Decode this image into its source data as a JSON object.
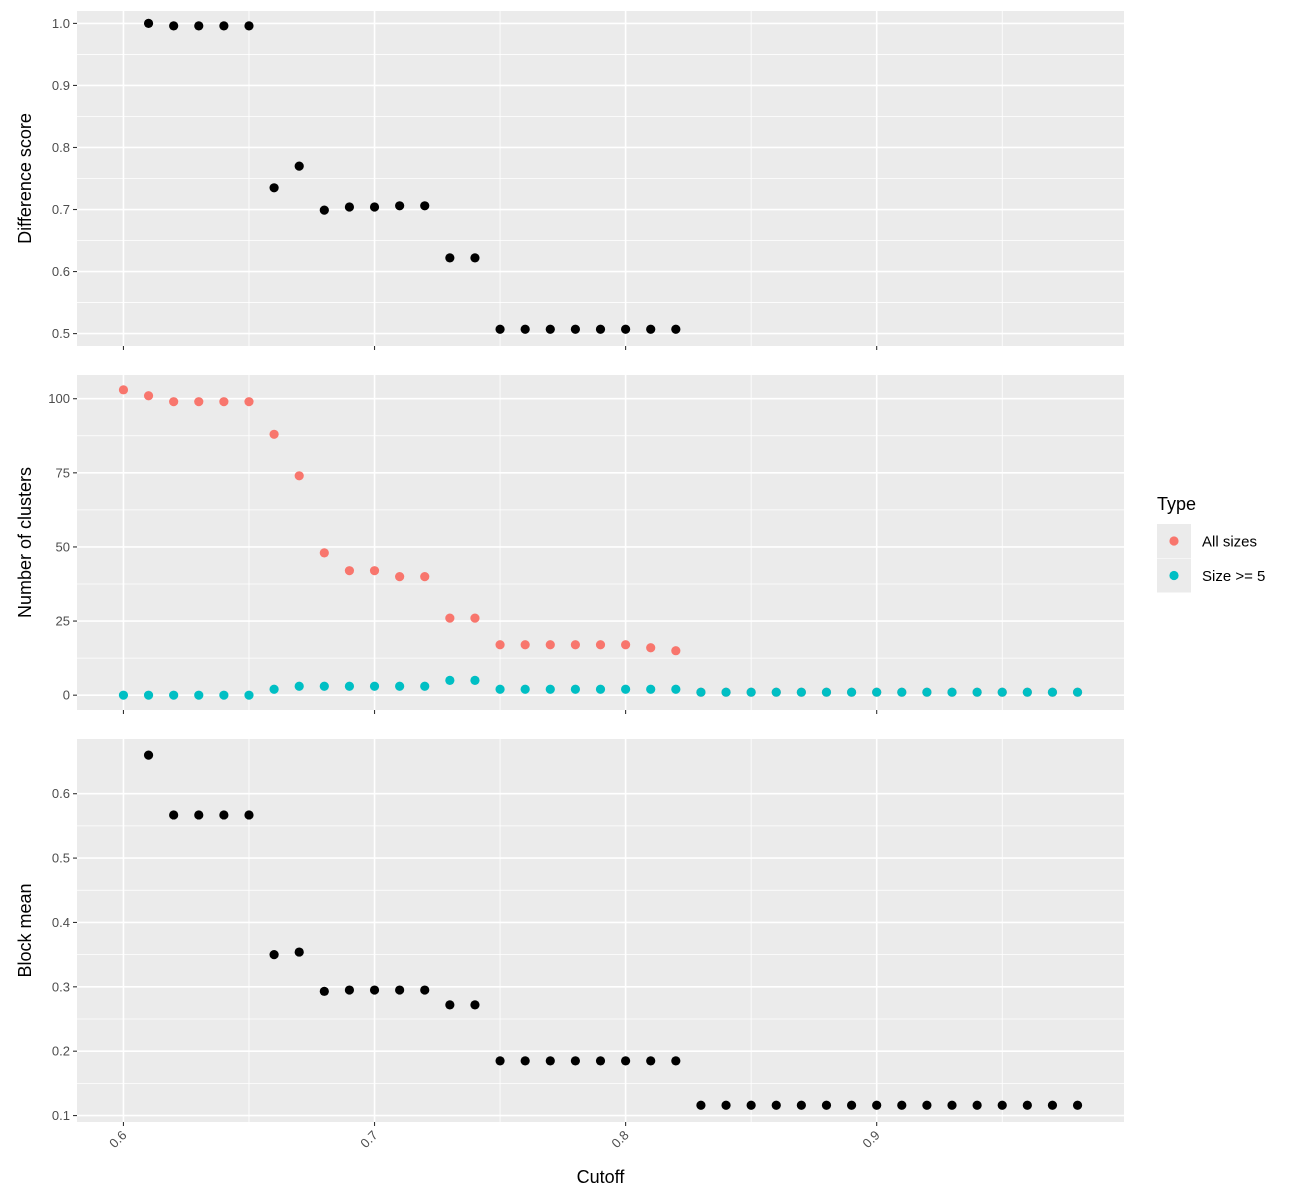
{
  "chart_data": {
    "type": "scatter",
    "layout": "faceted-vertical",
    "xlabel": "Cutoff",
    "x_ticks": [
      0.6,
      0.7,
      0.8,
      0.9
    ],
    "x_tick_labels": [
      "0.6",
      "0.7",
      "0.8",
      "0.9"
    ],
    "xlim": [
      0.5815,
      0.9985
    ],
    "grid": true,
    "legend": {
      "title": "Type",
      "placement": "right",
      "entries": [
        {
          "label": "All sizes",
          "color": "#F8766D"
        },
        {
          "label": "Size >= 5",
          "color": "#00BFC4"
        }
      ]
    },
    "panels": [
      {
        "ylabel": "Difference score",
        "ylim": [
          0.48,
          1.02
        ],
        "y_ticks": [
          0.5,
          0.6,
          0.7,
          0.8,
          0.9,
          1.0
        ],
        "y_tick_labels": [
          "0.5",
          "0.6",
          "0.7",
          "0.8",
          "0.9",
          "1.0"
        ],
        "series": [
          {
            "color": "#000000",
            "points": [
              [
                0.61,
                1.0
              ],
              [
                0.62,
                0.996
              ],
              [
                0.63,
                0.996
              ],
              [
                0.64,
                0.996
              ],
              [
                0.65,
                0.996
              ],
              [
                0.66,
                0.735
              ],
              [
                0.67,
                0.77
              ],
              [
                0.68,
                0.699
              ],
              [
                0.69,
                0.704
              ],
              [
                0.7,
                0.704
              ],
              [
                0.71,
                0.706
              ],
              [
                0.72,
                0.706
              ],
              [
                0.73,
                0.622
              ],
              [
                0.74,
                0.622
              ],
              [
                0.75,
                0.507
              ],
              [
                0.76,
                0.507
              ],
              [
                0.77,
                0.507
              ],
              [
                0.78,
                0.507
              ],
              [
                0.79,
                0.507
              ],
              [
                0.8,
                0.507
              ],
              [
                0.81,
                0.507
              ],
              [
                0.82,
                0.507
              ]
            ]
          }
        ]
      },
      {
        "ylabel": "Number of clusters",
        "ylim": [
          -5,
          108
        ],
        "y_ticks": [
          0,
          25,
          50,
          75,
          100
        ],
        "y_tick_labels": [
          "0",
          "25",
          "50",
          "75",
          "100"
        ],
        "series": [
          {
            "name": "All sizes",
            "color": "#F8766D",
            "points": [
              [
                0.6,
                103
              ],
              [
                0.61,
                101
              ],
              [
                0.62,
                99
              ],
              [
                0.63,
                99
              ],
              [
                0.64,
                99
              ],
              [
                0.65,
                99
              ],
              [
                0.66,
                88
              ],
              [
                0.67,
                74
              ],
              [
                0.68,
                48
              ],
              [
                0.69,
                42
              ],
              [
                0.7,
                42
              ],
              [
                0.71,
                40
              ],
              [
                0.72,
                40
              ],
              [
                0.73,
                26
              ],
              [
                0.74,
                26
              ],
              [
                0.75,
                17
              ],
              [
                0.76,
                17
              ],
              [
                0.77,
                17
              ],
              [
                0.78,
                17
              ],
              [
                0.79,
                17
              ],
              [
                0.8,
                17
              ],
              [
                0.81,
                16
              ],
              [
                0.82,
                15
              ],
              [
                0.83,
                1
              ],
              [
                0.84,
                1
              ],
              [
                0.85,
                1
              ],
              [
                0.86,
                1
              ],
              [
                0.87,
                1
              ],
              [
                0.88,
                1
              ],
              [
                0.89,
                1
              ],
              [
                0.9,
                1
              ],
              [
                0.91,
                1
              ],
              [
                0.92,
                1
              ],
              [
                0.93,
                1
              ],
              [
                0.94,
                1
              ],
              [
                0.95,
                1
              ],
              [
                0.96,
                1
              ],
              [
                0.97,
                1
              ],
              [
                0.98,
                1
              ]
            ]
          },
          {
            "name": "Size >= 5",
            "color": "#00BFC4",
            "points": [
              [
                0.6,
                0
              ],
              [
                0.61,
                0
              ],
              [
                0.62,
                0
              ],
              [
                0.63,
                0
              ],
              [
                0.64,
                0
              ],
              [
                0.65,
                0
              ],
              [
                0.66,
                2
              ],
              [
                0.67,
                3
              ],
              [
                0.68,
                3
              ],
              [
                0.69,
                3
              ],
              [
                0.7,
                3
              ],
              [
                0.71,
                3
              ],
              [
                0.72,
                3
              ],
              [
                0.73,
                5
              ],
              [
                0.74,
                5
              ],
              [
                0.75,
                2
              ],
              [
                0.76,
                2
              ],
              [
                0.77,
                2
              ],
              [
                0.78,
                2
              ],
              [
                0.79,
                2
              ],
              [
                0.8,
                2
              ],
              [
                0.81,
                2
              ],
              [
                0.82,
                2
              ],
              [
                0.83,
                1
              ],
              [
                0.84,
                1
              ],
              [
                0.85,
                1
              ],
              [
                0.86,
                1
              ],
              [
                0.87,
                1
              ],
              [
                0.88,
                1
              ],
              [
                0.89,
                1
              ],
              [
                0.9,
                1
              ],
              [
                0.91,
                1
              ],
              [
                0.92,
                1
              ],
              [
                0.93,
                1
              ],
              [
                0.94,
                1
              ],
              [
                0.95,
                1
              ],
              [
                0.96,
                1
              ],
              [
                0.97,
                1
              ],
              [
                0.98,
                1
              ]
            ]
          }
        ]
      },
      {
        "ylabel": "Block mean",
        "ylim": [
          0.09,
          0.685
        ],
        "y_ticks": [
          0.1,
          0.2,
          0.3,
          0.4,
          0.5,
          0.6
        ],
        "y_tick_labels": [
          "0.1",
          "0.2",
          "0.3",
          "0.4",
          "0.5",
          "0.6"
        ],
        "series": [
          {
            "color": "#000000",
            "points": [
              [
                0.61,
                0.66
              ],
              [
                0.62,
                0.567
              ],
              [
                0.63,
                0.567
              ],
              [
                0.64,
                0.567
              ],
              [
                0.65,
                0.567
              ],
              [
                0.66,
                0.35
              ],
              [
                0.67,
                0.354
              ],
              [
                0.68,
                0.293
              ],
              [
                0.69,
                0.295
              ],
              [
                0.7,
                0.295
              ],
              [
                0.71,
                0.295
              ],
              [
                0.72,
                0.295
              ],
              [
                0.73,
                0.272
              ],
              [
                0.74,
                0.272
              ],
              [
                0.75,
                0.185
              ],
              [
                0.76,
                0.185
              ],
              [
                0.77,
                0.185
              ],
              [
                0.78,
                0.185
              ],
              [
                0.79,
                0.185
              ],
              [
                0.8,
                0.185
              ],
              [
                0.81,
                0.185
              ],
              [
                0.82,
                0.185
              ],
              [
                0.83,
                0.116
              ],
              [
                0.84,
                0.116
              ],
              [
                0.85,
                0.116
              ],
              [
                0.86,
                0.116
              ],
              [
                0.87,
                0.116
              ],
              [
                0.88,
                0.116
              ],
              [
                0.89,
                0.116
              ],
              [
                0.9,
                0.116
              ],
              [
                0.91,
                0.116
              ],
              [
                0.92,
                0.116
              ],
              [
                0.93,
                0.116
              ],
              [
                0.94,
                0.116
              ],
              [
                0.95,
                0.116
              ],
              [
                0.96,
                0.116
              ],
              [
                0.97,
                0.116
              ],
              [
                0.98,
                0.116
              ]
            ]
          }
        ]
      }
    ]
  }
}
